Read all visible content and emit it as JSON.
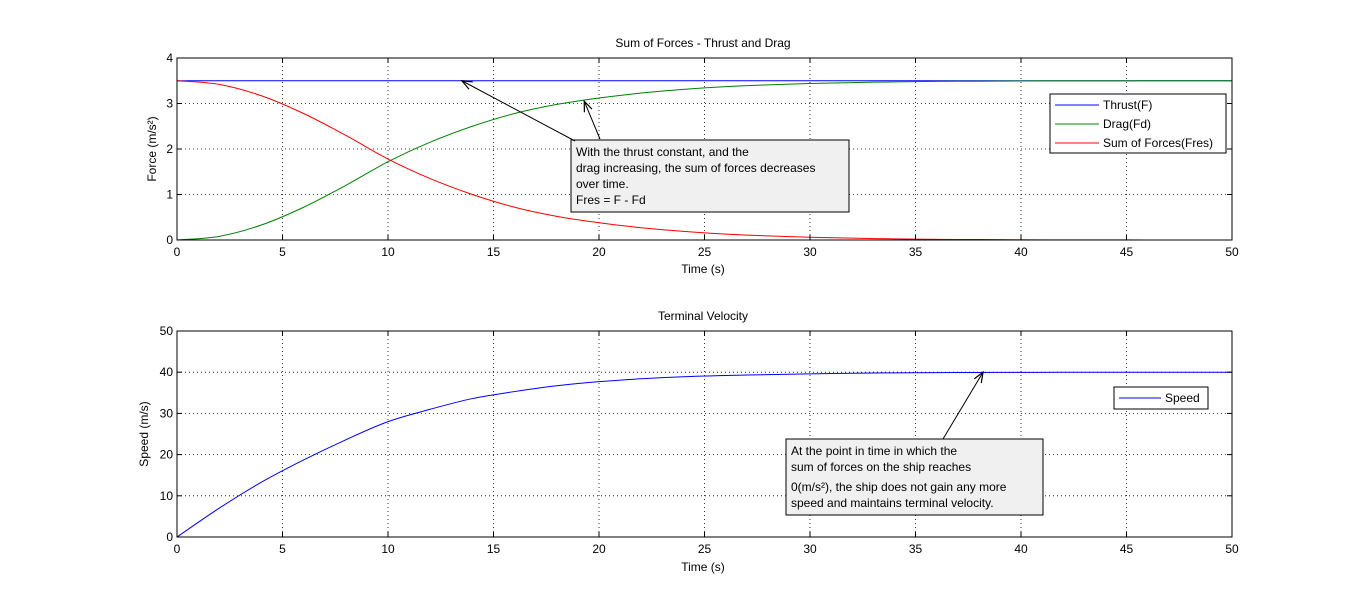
{
  "chart_data": [
    {
      "type": "line",
      "title": "Sum of Forces - Thrust and Drag",
      "xlabel": "Time (s)",
      "ylabel": "Force (m/s²)",
      "xlim": [
        0,
        50
      ],
      "ylim": [
        0,
        4
      ],
      "xticks": [
        "0",
        "5",
        "10",
        "15",
        "20",
        "25",
        "30",
        "35",
        "40",
        "45",
        "50"
      ],
      "yticks": [
        "0",
        "1",
        "2",
        "3",
        "4"
      ],
      "grid": true,
      "legend_position": "right",
      "x": [
        0,
        2,
        4,
        6,
        8,
        10,
        12,
        14,
        16,
        18,
        20,
        22,
        24,
        26,
        28,
        30,
        32,
        34,
        36,
        38,
        40,
        42,
        44,
        46,
        48,
        50
      ],
      "series": [
        {
          "name": "Thrust(F)",
          "color": "#0000ff",
          "values": [
            3.5,
            3.5,
            3.5,
            3.5,
            3.5,
            3.5,
            3.5,
            3.5,
            3.5,
            3.5,
            3.5,
            3.5,
            3.5,
            3.5,
            3.5,
            3.5,
            3.5,
            3.5,
            3.5,
            3.5,
            3.5,
            3.5,
            3.5,
            3.5,
            3.5,
            3.5
          ]
        },
        {
          "name": "Drag(Fd)",
          "color": "#008000",
          "values": [
            0.0,
            0.08,
            0.33,
            0.72,
            1.2,
            1.72,
            2.15,
            2.5,
            2.78,
            2.98,
            3.12,
            3.23,
            3.31,
            3.37,
            3.41,
            3.44,
            3.46,
            3.475,
            3.485,
            3.49,
            3.495,
            3.497,
            3.498,
            3.499,
            3.5,
            3.5
          ]
        },
        {
          "name": "Sum of Forces(Fres)",
          "color": "#ff0000",
          "values": [
            3.5,
            3.42,
            3.17,
            2.78,
            2.3,
            1.78,
            1.35,
            1.0,
            0.72,
            0.52,
            0.38,
            0.27,
            0.19,
            0.13,
            0.09,
            0.06,
            0.04,
            0.025,
            0.015,
            0.01,
            0.005,
            0.003,
            0.002,
            0.001,
            0.0,
            0.0
          ]
        }
      ],
      "annotation": {
        "lines": [
          "With the thrust constant, and the",
          "drag increasing, the sum of forces decreases",
          "over time.",
          "Fres = F - Fd"
        ],
        "arrow_targets": [
          [
            13.5,
            3.5
          ],
          [
            19.3,
            3.05
          ]
        ]
      }
    },
    {
      "type": "line",
      "title": "Terminal Velocity",
      "xlabel": "Time (s)",
      "ylabel": "Speed (m/s)",
      "xlim": [
        0,
        50
      ],
      "ylim": [
        0,
        50
      ],
      "xticks": [
        "0",
        "5",
        "10",
        "15",
        "20",
        "25",
        "30",
        "35",
        "40",
        "45",
        "50"
      ],
      "yticks": [
        "0",
        "10",
        "20",
        "30",
        "40",
        "50"
      ],
      "grid": true,
      "legend_position": "right",
      "x": [
        0,
        2,
        4,
        6,
        8,
        10,
        12,
        14,
        16,
        18,
        20,
        22,
        24,
        26,
        28,
        30,
        32,
        34,
        36,
        38,
        40,
        42,
        44,
        46,
        48,
        50
      ],
      "series": [
        {
          "name": "Speed",
          "color": "#0000ff",
          "values": [
            0.0,
            7.0,
            13.3,
            18.7,
            23.6,
            28.0,
            31.0,
            33.6,
            35.3,
            36.7,
            37.7,
            38.4,
            38.9,
            39.2,
            39.4,
            39.6,
            39.75,
            39.85,
            39.9,
            39.94,
            39.96,
            39.98,
            39.99,
            40.0,
            40.0,
            40.0
          ]
        }
      ],
      "annotation": {
        "lines": [
          "At the point in time in which the",
          "sum of forces on the ship reaches",
          "0(m/s²), the ship does not gain any more",
          "speed and maintains terminal velocity."
        ],
        "arrow_targets": [
          [
            38.2,
            40
          ]
        ]
      }
    }
  ]
}
